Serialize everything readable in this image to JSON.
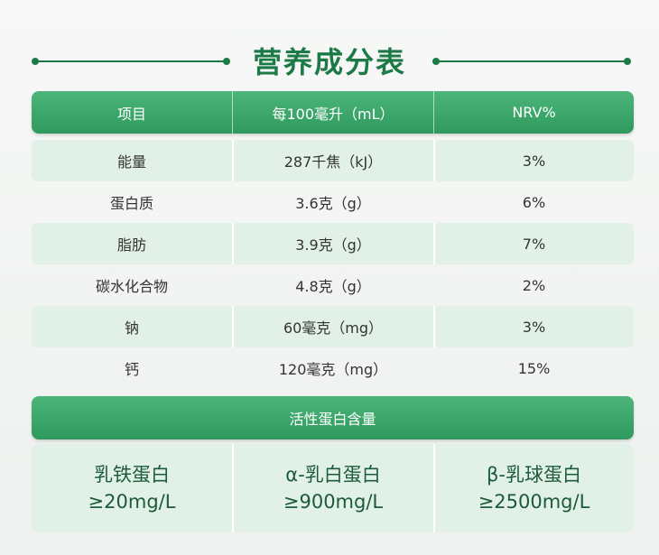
{
  "header": {
    "title": "营养成分表"
  },
  "table": {
    "columns": [
      "项目",
      "每100毫升（mL）",
      "NRV%"
    ],
    "rows": [
      [
        "能量",
        "287千焦（kJ）",
        "3%"
      ],
      [
        "蛋白质",
        "3.6克（g）",
        "6%"
      ],
      [
        "脂肪",
        "3.9克（g）",
        "7%"
      ],
      [
        "碳水化合物",
        "4.8克（g）",
        "2%"
      ],
      [
        "钠",
        "60毫克（mg）",
        "3%"
      ],
      [
        "钙",
        "120毫克（mg）",
        "15%"
      ]
    ]
  },
  "active_protein": {
    "title": "活性蛋白含量",
    "items": [
      {
        "name": "乳铁蛋白",
        "amount": "≥20mg/L"
      },
      {
        "name": "α-乳白蛋白",
        "amount": "≥900mg/L"
      },
      {
        "name": "β-乳球蛋白",
        "amount": "≥2500mg/L"
      }
    ]
  }
}
